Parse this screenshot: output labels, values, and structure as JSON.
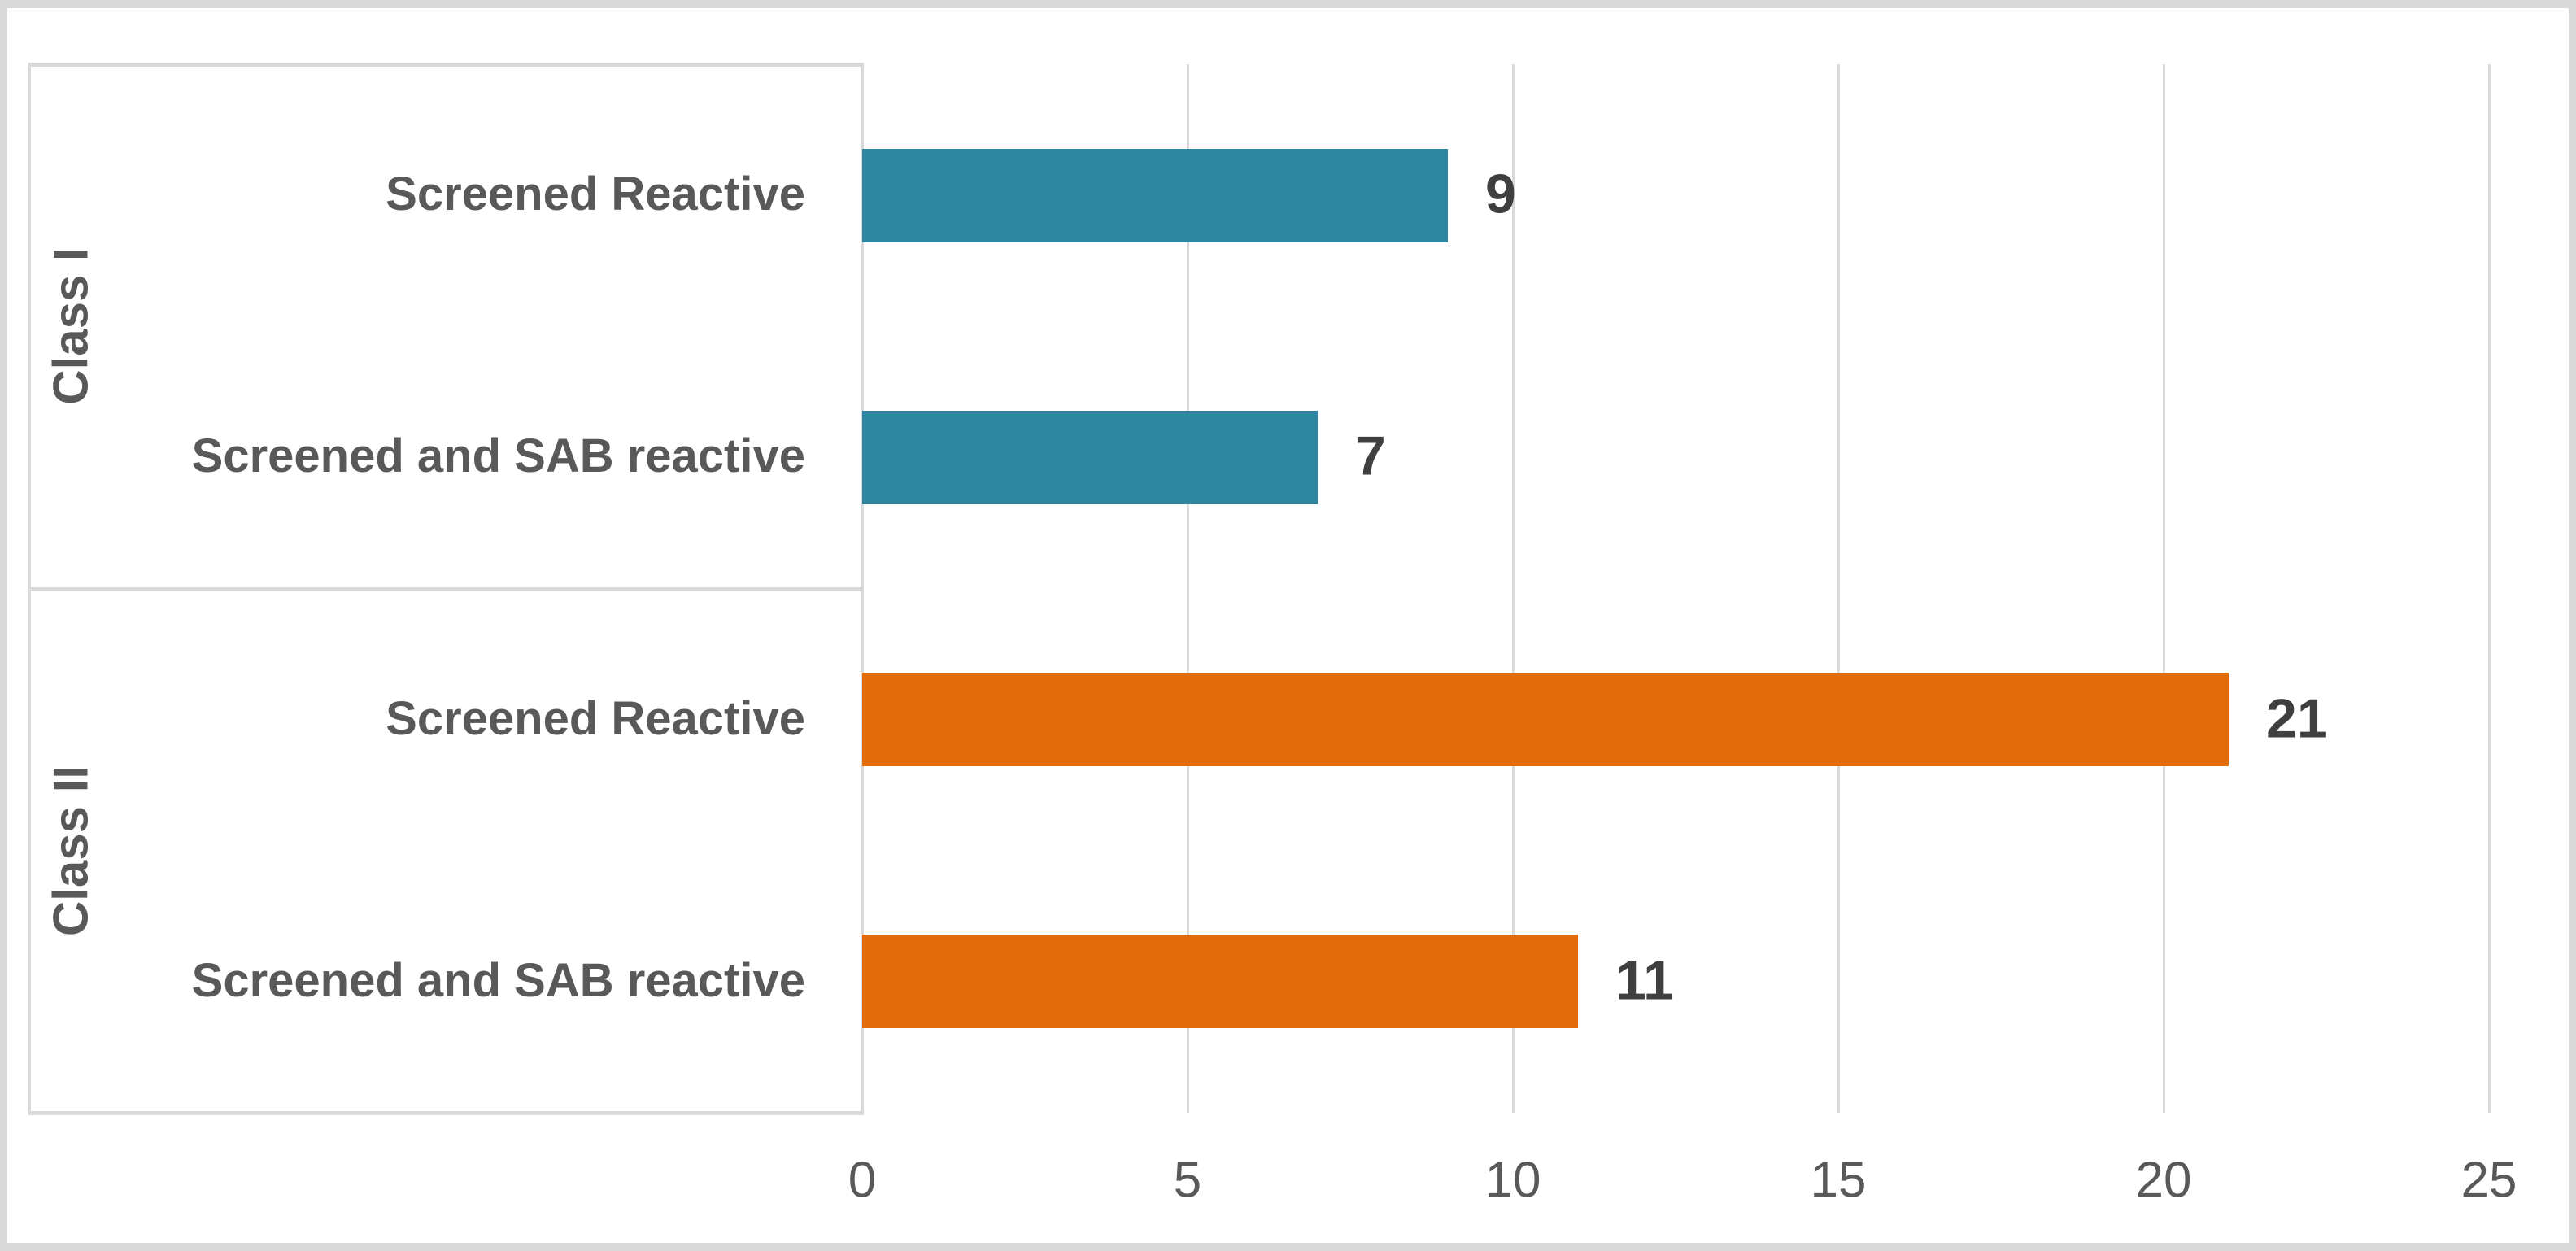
{
  "chart_data": {
    "type": "bar",
    "orientation": "horizontal",
    "title": "",
    "xlabel": "",
    "ylabel": "",
    "xlim": [
      0,
      25
    ],
    "x_ticks": [
      0,
      5,
      10,
      15,
      20,
      25
    ],
    "grid": true,
    "legend": "none",
    "data_labels": true,
    "groups": [
      {
        "label": "Class I",
        "color": "#2E86A0",
        "items": [
          {
            "category": "Screened Reactive",
            "value": 9
          },
          {
            "category": "Screened and SAB reactive",
            "value": 7
          }
        ]
      },
      {
        "label": "Class II",
        "color": "#E36C0A",
        "items": [
          {
            "category": "Screened Reactive",
            "value": 21
          },
          {
            "category": "Screened and SAB reactive",
            "value": 11
          }
        ]
      }
    ],
    "colors": {
      "class_i_bars": "#2E86A0",
      "class_ii_bars": "#E36C0A",
      "gridlines": "#D9D9D9",
      "figure_border": "#D9D9D9",
      "axis_text": "#595959",
      "data_label_text": "#3F3F3F",
      "background": "#FFFFFF"
    }
  }
}
